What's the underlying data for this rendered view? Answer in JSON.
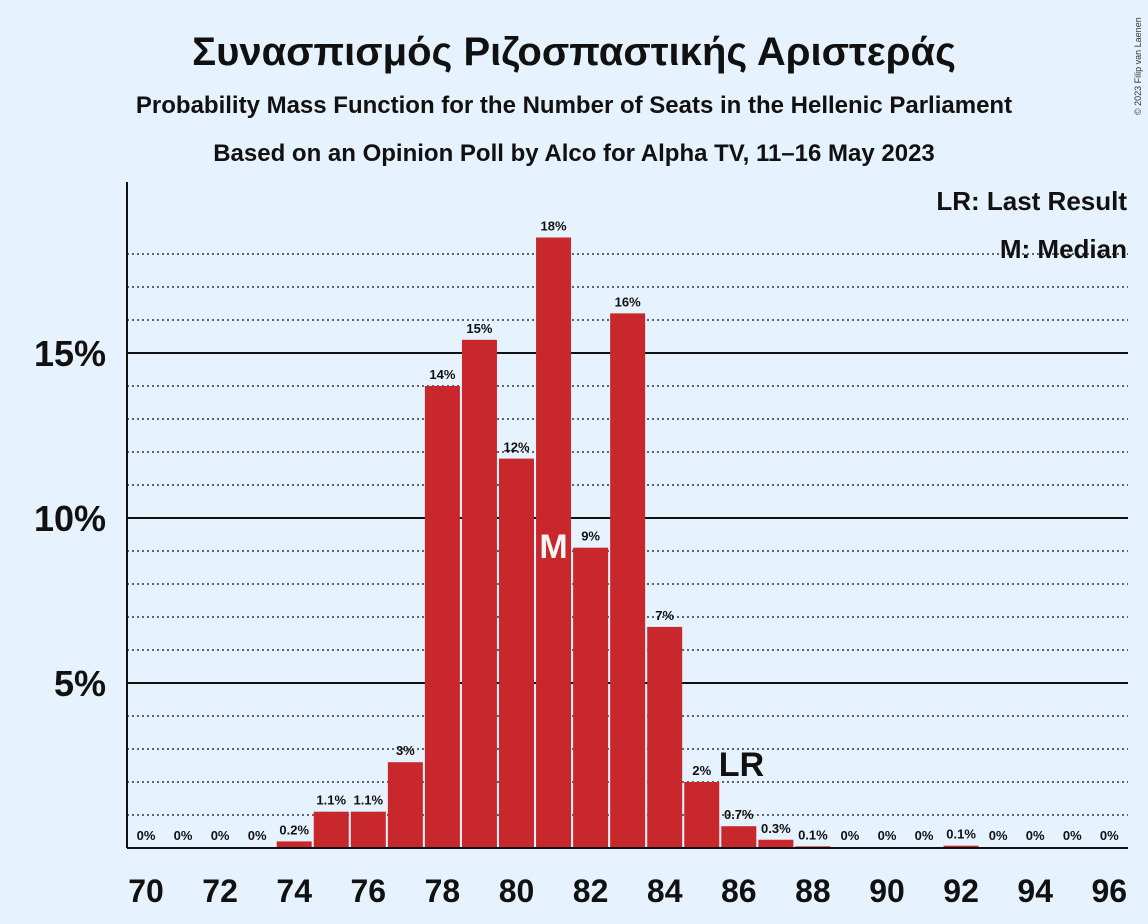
{
  "copyright": "© 2023 Filip van Laenen",
  "chart_data": {
    "type": "bar",
    "title": "Συνασπισμός Ριζοσπαστικής Αριστεράς",
    "subtitle": "Probability Mass Function for the Number of Seats in the Hellenic Parliament",
    "subtitle2": "Based on an Opinion Poll by Alco for Alpha TV, 11–16 May 2023",
    "x": [
      70,
      71,
      72,
      73,
      74,
      75,
      76,
      77,
      78,
      79,
      80,
      81,
      82,
      83,
      84,
      85,
      86,
      87,
      88,
      89,
      90,
      91,
      92,
      93,
      94,
      95,
      96
    ],
    "values": [
      0,
      0,
      0,
      0,
      0.2,
      1.1,
      1.1,
      2.6,
      14.0,
      15.4,
      11.8,
      18.5,
      9.1,
      16.2,
      6.7,
      2.0,
      0.66,
      0.25,
      0.05,
      0,
      0,
      0,
      0.07,
      0,
      0,
      0,
      0
    ],
    "labels": [
      "0%",
      "0%",
      "0%",
      "0%",
      "0.2%",
      "1.1%",
      "1.1%",
      "3%",
      "14%",
      "15%",
      "12%",
      "18%",
      "9%",
      "16%",
      "7%",
      "2%",
      "0.7%",
      "0.3%",
      "0.1%",
      "0%",
      "0%",
      "0%",
      "0.1%",
      "0%",
      "0%",
      "0%",
      "0%"
    ],
    "xticks": [
      70,
      72,
      74,
      76,
      78,
      80,
      82,
      84,
      86,
      88,
      90,
      92,
      94,
      96
    ],
    "yticks": [
      {
        "value": 5,
        "label": "5%"
      },
      {
        "value": 10,
        "label": "10%"
      },
      {
        "value": 15,
        "label": "15%"
      }
    ],
    "ylim": [
      0,
      20
    ],
    "minor_grid_step": 1,
    "median": {
      "x": 81,
      "label": "M"
    },
    "last_result": {
      "x": 86,
      "label": "LR"
    },
    "legend": [
      "LR: Last Result",
      "M: Median"
    ],
    "bar_color": "#c8282c"
  }
}
